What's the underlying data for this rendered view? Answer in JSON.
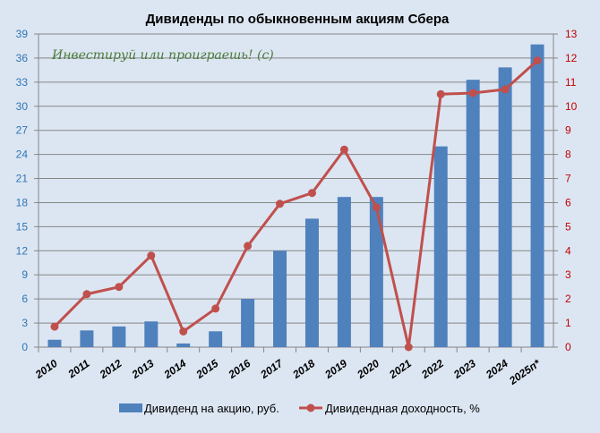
{
  "chart_data": {
    "type": "bar",
    "title": "Дивиденды по обыкновенным  акциям Сбера",
    "annotation": "Инвестируй или проиграешь! (c)",
    "categories": [
      "2010",
      "2011",
      "2012",
      "2013",
      "2014",
      "2015",
      "2016",
      "2017",
      "2018",
      "2019",
      "2020",
      "2021",
      "2022",
      "2023",
      "2024",
      "2025п*"
    ],
    "series": [
      {
        "name": "Дивиденд на акцию, руб.",
        "type": "bar",
        "axis": "left",
        "color": "#4f81bd",
        "values": [
          0.92,
          2.08,
          2.57,
          3.2,
          0.45,
          1.97,
          6.0,
          12.0,
          16.0,
          18.7,
          18.7,
          0,
          25.0,
          33.3,
          34.84,
          37.7
        ]
      },
      {
        "name": "Дивидендная доходность, %",
        "type": "line",
        "axis": "right",
        "color": "#c0504d",
        "values": [
          0.85,
          2.2,
          2.5,
          3.8,
          0.65,
          1.6,
          4.2,
          5.95,
          6.4,
          8.2,
          5.8,
          0,
          10.5,
          10.55,
          10.7,
          11.9
        ]
      }
    ],
    "y_left": {
      "min": 0,
      "max": 39,
      "ticks": [
        "0",
        "3",
        "6",
        "9",
        "12",
        "15",
        "18",
        "21",
        "24",
        "27",
        "30",
        "33",
        "36",
        "39"
      ],
      "color": "#2e75b6"
    },
    "y_right": {
      "min": 0,
      "max": 13,
      "ticks": [
        "0",
        "1",
        "2",
        "3",
        "4",
        "5",
        "6",
        "7",
        "8",
        "9",
        "10",
        "11",
        "12",
        "13"
      ],
      "color": "#c00000"
    },
    "grid": true,
    "legend": "bottom"
  }
}
